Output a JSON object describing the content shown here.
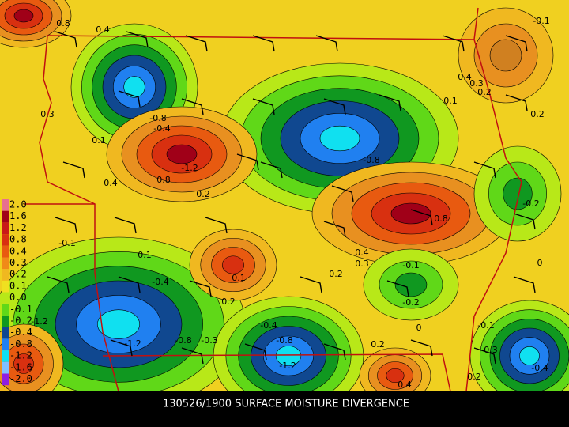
{
  "title": "130526/1900 SURFACE MOISTURE DIVERGENCE",
  "legend": [
    {
      "label": "2.0",
      "color": "#e87090"
    },
    {
      "label": "1.6",
      "color": "#a00018"
    },
    {
      "label": "1.2",
      "color": "#c81818"
    },
    {
      "label": "0.8",
      "color": "#d83010"
    },
    {
      "label": "0.4",
      "color": "#e85a10"
    },
    {
      "label": "0.3",
      "color": "#f08a18"
    },
    {
      "label": "0.2",
      "color": "#f0b820"
    },
    {
      "label": "0.1",
      "color": "#f0e020"
    },
    {
      "label": "0.0",
      "color": "#b8e818"
    },
    {
      "label": "-0.1",
      "color": "#60d818"
    },
    {
      "label": "-0.2",
      "color": "#109820"
    },
    {
      "label": "-0.4",
      "color": "#104890"
    },
    {
      "label": "-0.8",
      "color": "#2080f0"
    },
    {
      "label": "-1.2",
      "color": "#10e0f0"
    },
    {
      "label": "-1.6",
      "color": "#80c0ff"
    },
    {
      "label": "-2.0",
      "color": "#9020e0"
    }
  ],
  "contour_labels": [
    "0.8",
    "0.4",
    "-0.1",
    "-0.8",
    "-0.4",
    "-1.2",
    "0.8",
    "0.4",
    "0.3",
    "0.1",
    "-0.8",
    "0.2",
    "0.4",
    "0.3",
    "0.2",
    "0.1",
    "0.2",
    "-0.2",
    "0.8",
    "0.4",
    "0.3",
    "-0.1",
    "0.1",
    "-0.4",
    "0.1",
    "0.2",
    "-0.1",
    "-0.2",
    "0",
    "-1.2",
    "-0.8",
    "-0.3",
    "-0.4",
    "-0.8",
    "-1.2",
    "0",
    "0.2",
    "-0.1",
    "0.3",
    "-0.4",
    "0.4",
    "0.2",
    "-1.2",
    "0.2"
  ]
}
